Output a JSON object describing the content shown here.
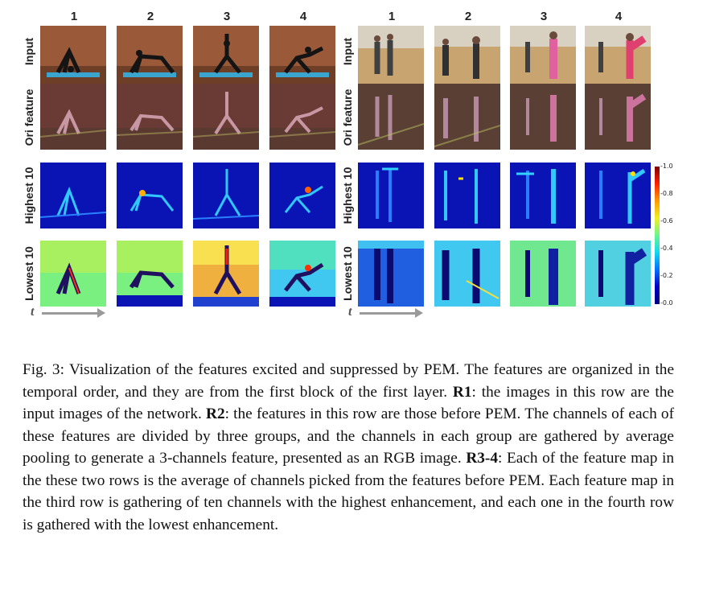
{
  "figure": {
    "left_group": {
      "columns": [
        "1",
        "2",
        "3",
        "4"
      ],
      "rows": [
        "Input",
        "Ori feature",
        "Highest 10",
        "Lowest 10"
      ],
      "time_label": "t"
    },
    "right_group": {
      "columns": [
        "1",
        "2",
        "3",
        "4"
      ],
      "rows": [
        "Input",
        "Ori feature",
        "Highest 10",
        "Lowest 10"
      ],
      "time_label": "t"
    },
    "colorbar": {
      "ticks": [
        "-1.0",
        "-0.8",
        "-0.6",
        "-0.4",
        "-0.2",
        "-0.0"
      ],
      "colors": [
        "#7f0000",
        "#ff2000",
        "#ff9a00",
        "#f0f020",
        "#6af58e",
        "#10d8f0",
        "#0070ff",
        "#0000c8",
        "#00007f"
      ]
    },
    "icons": [
      "yoga-pose-thumbnail",
      "dance-hall-thumbnail",
      "feature-heatmap-thumbnail"
    ]
  },
  "caption": {
    "fig_label": "Fig. 3:",
    "text1": " Visualization of the features excited and suppressed by PEM. The features are organized in the temporal order, and they are from the first block of the first layer. ",
    "r1_label": "R1",
    "text2": ": the images in this row are the input images of the network. ",
    "r2_label": "R2",
    "text3": ": the features in this row are those before PEM. The channels of each of these features are divided by three groups, and the channels in each group are gathered by average pooling to generate a 3-channels feature, presented as an RGB image. ",
    "r34_label": "R3-4",
    "text4": ": Each of the feature map in the these two rows is the average of channels picked from the features before PEM. Each feature map in the third row is gathering of ten channels with the highest enhancement, and each one in the fourth row is gathered with the lowest enhancement."
  }
}
